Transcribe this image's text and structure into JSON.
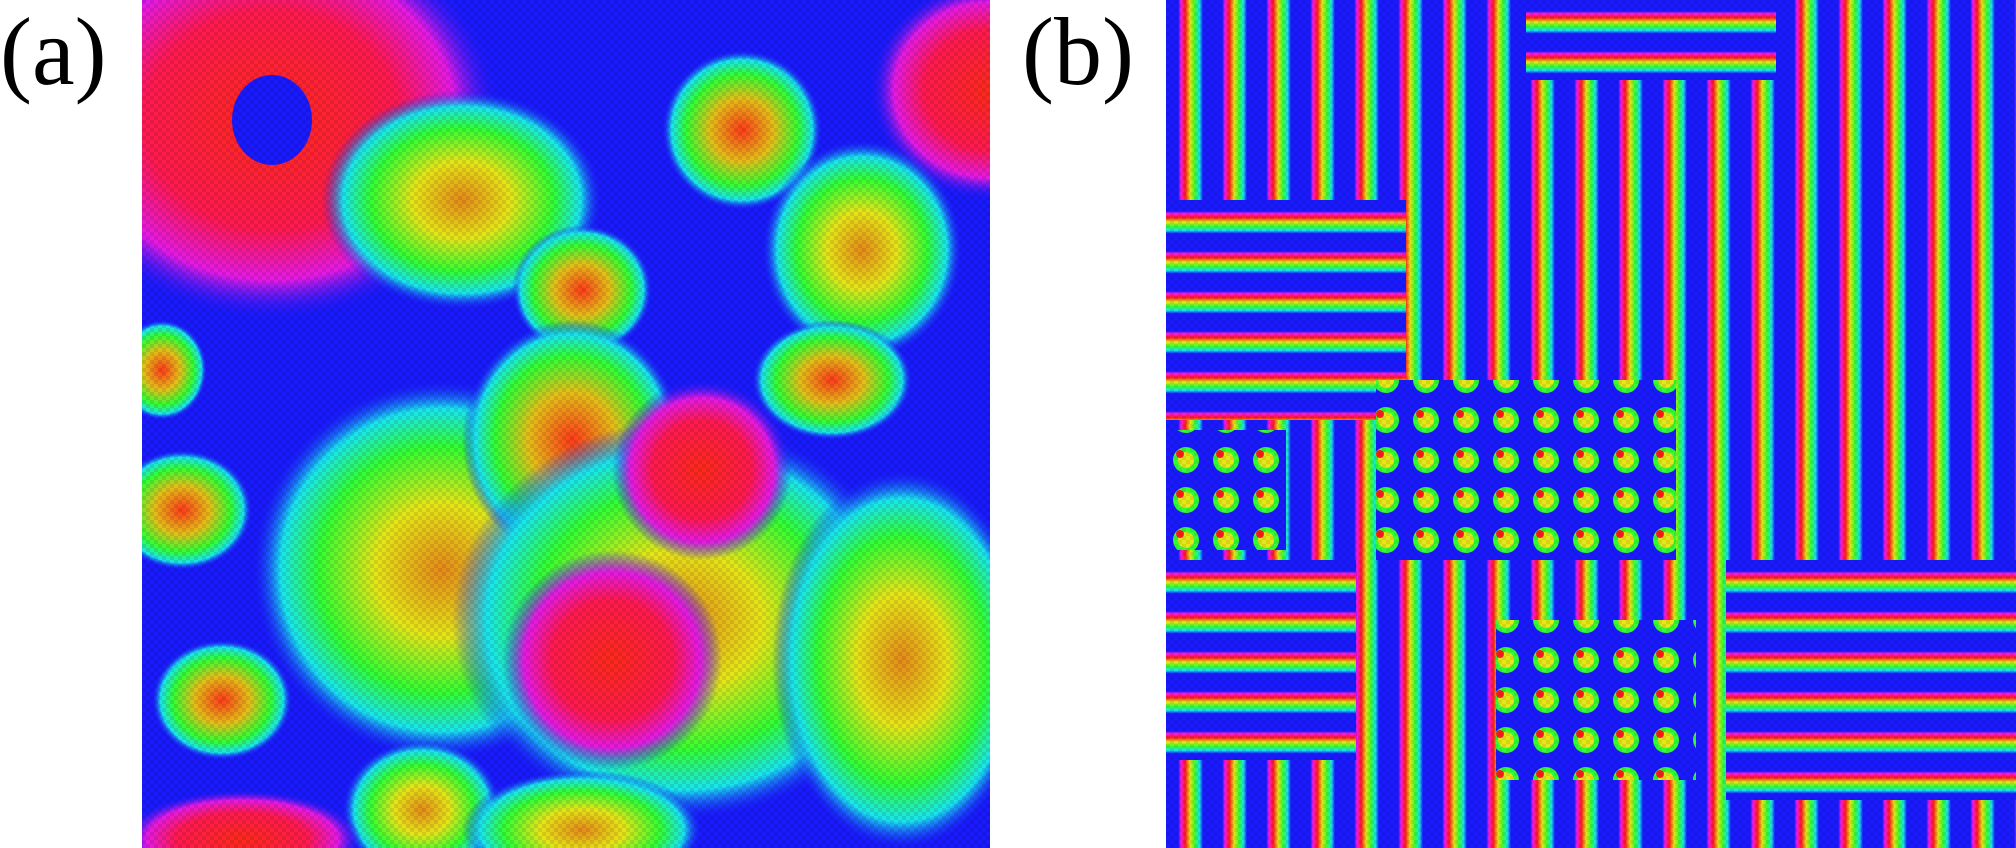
{
  "panels": [
    {
      "label": "(a)",
      "name": "panel-a"
    },
    {
      "label": "(b)",
      "name": "panel-b"
    }
  ],
  "colors": {
    "blue": "#1a1aff",
    "cyan": "#19e6f0",
    "green": "#33ff33",
    "yellow": "#e6e619",
    "red": "#ff1a1a",
    "magenta": "#ff19e6"
  }
}
